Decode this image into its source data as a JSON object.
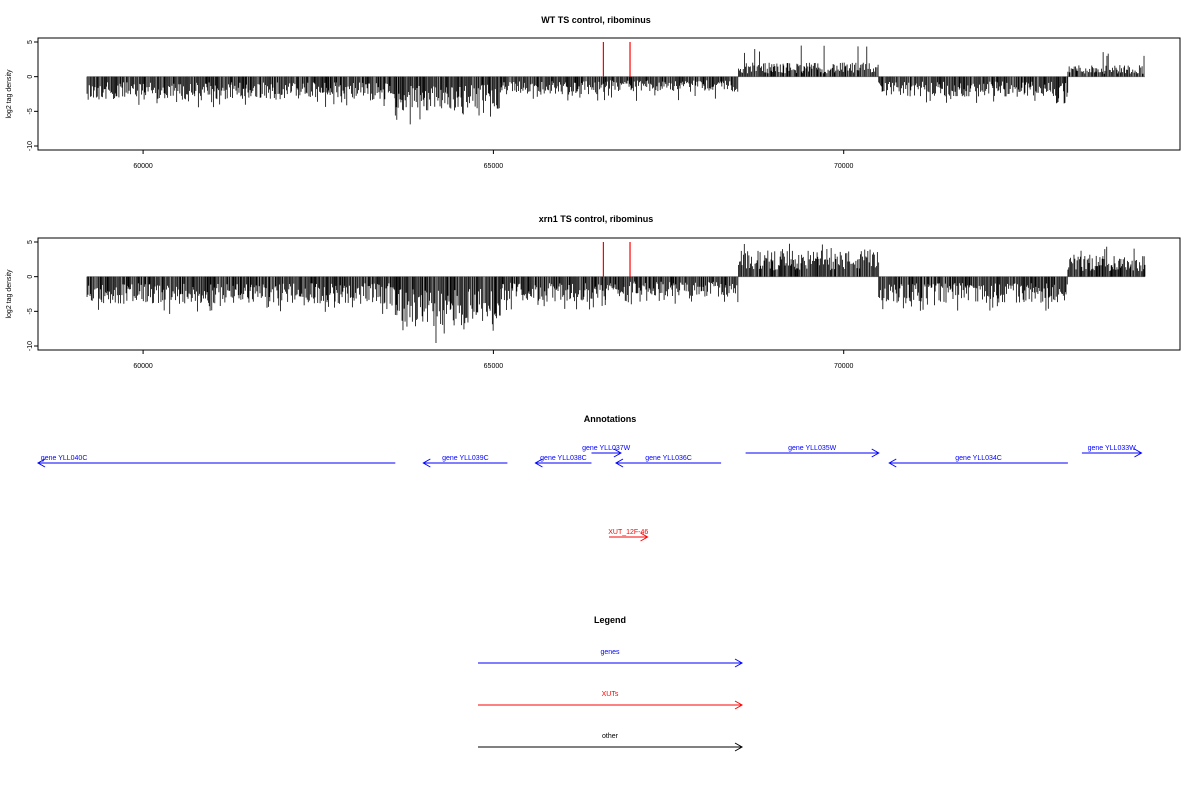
{
  "chart_data": [
    {
      "type": "bar",
      "title": "WT TS control, ribominus",
      "xlabel": "",
      "ylabel": "log2 tag density",
      "xlim": [
        58500,
        74800
      ],
      "ylim": [
        -10,
        5
      ],
      "xticks": [
        60000,
        65000,
        70000
      ],
      "yticks": [
        5,
        0,
        -5,
        -10
      ],
      "xtick_labels": [
        "60000",
        "65000",
        "70000"
      ],
      "ytick_labels": [
        "5",
        "0",
        "-5",
        "-10"
      ],
      "grid": false,
      "bar_color": "#000000",
      "highlight_color": "#ff0000",
      "density_regions": [
        {
          "start": 59200,
          "end": 63600,
          "sign": -1,
          "avg": 2.3,
          "max": 4.5
        },
        {
          "start": 63600,
          "end": 64350,
          "sign": -1,
          "avg": 3.5,
          "max": 7.0
        },
        {
          "start": 64350,
          "end": 65100,
          "sign": -1,
          "avg": 3.2,
          "max": 6.0
        },
        {
          "start": 65100,
          "end": 66600,
          "sign": -1,
          "avg": 1.8,
          "max": 3.5
        },
        {
          "start": 66600,
          "end": 68500,
          "sign": -1,
          "avg": 1.5,
          "max": 3.5
        },
        {
          "start": 68500,
          "end": 70500,
          "sign": 1,
          "avg": 1.4,
          "max": 4.5
        },
        {
          "start": 70500,
          "end": 73200,
          "sign": -1,
          "avg": 2.0,
          "max": 4.0
        },
        {
          "start": 73200,
          "end": 74300,
          "sign": 1,
          "avg": 1.2,
          "max": 3.6
        }
      ],
      "highlights": [
        {
          "x": 66570,
          "value": 5
        },
        {
          "x": 66950,
          "value": 5
        }
      ]
    },
    {
      "type": "bar",
      "title": "xrn1 TS control, ribominus",
      "xlabel": "",
      "ylabel": "log2 tag density",
      "xlim": [
        58500,
        74800
      ],
      "ylim": [
        -10,
        5
      ],
      "xticks": [
        60000,
        65000,
        70000
      ],
      "yticks": [
        5,
        0,
        -5,
        -10
      ],
      "xtick_labels": [
        "60000",
        "65000",
        "70000"
      ],
      "ytick_labels": [
        "5",
        "0",
        "-5",
        "-10"
      ],
      "grid": false,
      "bar_color": "#000000",
      "highlight_color": "#ff0000",
      "density_regions": [
        {
          "start": 59200,
          "end": 63600,
          "sign": -1,
          "avg": 2.7,
          "max": 5.5
        },
        {
          "start": 63600,
          "end": 64350,
          "sign": -1,
          "avg": 5.2,
          "max": 9.8
        },
        {
          "start": 64350,
          "end": 65100,
          "sign": -1,
          "avg": 5.0,
          "max": 9.0
        },
        {
          "start": 65100,
          "end": 66600,
          "sign": -1,
          "avg": 2.5,
          "max": 5.0
        },
        {
          "start": 66600,
          "end": 68500,
          "sign": -1,
          "avg": 2.0,
          "max": 4.0
        },
        {
          "start": 68500,
          "end": 70500,
          "sign": 1,
          "avg": 2.6,
          "max": 4.8
        },
        {
          "start": 70500,
          "end": 73200,
          "sign": -1,
          "avg": 2.6,
          "max": 5.0
        },
        {
          "start": 73200,
          "end": 74300,
          "sign": 1,
          "avg": 2.2,
          "max": 4.8
        }
      ],
      "highlights": [
        {
          "x": 66570,
          "value": 5
        },
        {
          "x": 66950,
          "value": 5
        }
      ]
    }
  ],
  "annotations": {
    "title": "Annotations",
    "xlim": [
      58500,
      74800
    ],
    "features": [
      {
        "label": "gene YLL040C",
        "start": 58500,
        "end": 63600,
        "strand": "-",
        "row": "lower",
        "type": "gene",
        "label_at": 58540
      },
      {
        "label": "gene YLL039C",
        "start": 64000,
        "end": 65200,
        "strand": "-",
        "row": "lower",
        "type": "gene"
      },
      {
        "label": "gene YLL038C",
        "start": 65600,
        "end": 66400,
        "strand": "-",
        "row": "lower",
        "type": "gene"
      },
      {
        "label": "gene YLL037W",
        "start": 66400,
        "end": 66820,
        "strand": "+",
        "row": "upper",
        "type": "gene"
      },
      {
        "label": "gene YLL036C",
        "start": 66750,
        "end": 68250,
        "strand": "-",
        "row": "lower",
        "type": "gene"
      },
      {
        "label": "gene YLL035W",
        "start": 68600,
        "end": 70500,
        "strand": "+",
        "row": "upper",
        "type": "gene"
      },
      {
        "label": "gene YLL034C",
        "start": 70650,
        "end": 73200,
        "strand": "-",
        "row": "lower",
        "type": "gene"
      },
      {
        "label": "gene YLL033W",
        "start": 73400,
        "end": 74250,
        "strand": "+",
        "row": "upper",
        "type": "gene"
      },
      {
        "label": "XUT_12F-46",
        "start": 66650,
        "end": 67200,
        "strand": "+",
        "row": "xut",
        "type": "xut"
      }
    ]
  },
  "legend": {
    "title": "Legend",
    "items": [
      {
        "label": "genes",
        "color": "#0000ff"
      },
      {
        "label": "XUTs",
        "color": "#ff0000"
      },
      {
        "label": "other",
        "color": "#000000"
      }
    ]
  }
}
